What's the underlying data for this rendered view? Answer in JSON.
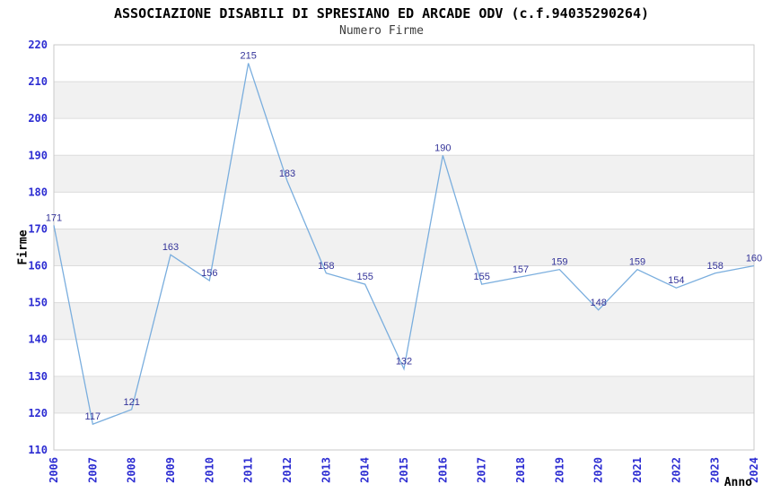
{
  "chart_data": {
    "type": "line",
    "title": "ASSOCIAZIONE DISABILI DI SPRESIANO ED ARCADE ODV (c.f.94035290264)",
    "subtitle": "Numero Firme",
    "xlabel": "Anno",
    "ylabel": "Firme",
    "categories": [
      "2006",
      "2007",
      "2008",
      "2009",
      "2010",
      "2011",
      "2012",
      "2013",
      "2014",
      "2015",
      "2016",
      "2017",
      "2018",
      "2019",
      "2020",
      "2021",
      "2022",
      "2023",
      "2024"
    ],
    "values": [
      171,
      117,
      121,
      163,
      156,
      215,
      183,
      158,
      155,
      132,
      190,
      155,
      157,
      159,
      148,
      159,
      154,
      158,
      160
    ],
    "ylim": [
      110,
      220
    ],
    "ytick_step": 10,
    "grid": true,
    "banded_background": true,
    "legend": "none",
    "data_labels_shown": true,
    "colors": {
      "line": "#7aaede",
      "data_label": "#333399",
      "tick_label": "#2d2dd2",
      "band": "#f1f1f1",
      "gridline": "#dcdcdc",
      "plot_border": "#c9c9c9",
      "title": "#000000",
      "subtitle": "#3c3c3c",
      "axis_title": "#000000",
      "background": "#ffffff"
    }
  }
}
